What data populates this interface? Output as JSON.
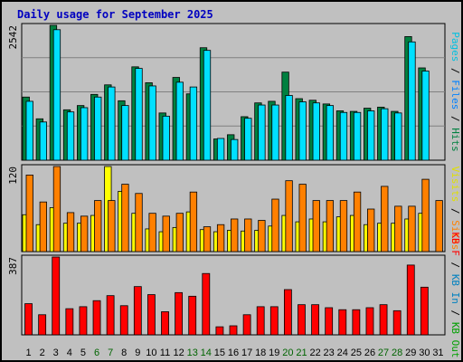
{
  "title": "Daily usage for September 2025",
  "colors": {
    "background": "#c0c0c0",
    "title": "#0000c0",
    "hits": "#008040",
    "files": "#00e0ff",
    "pages": "#00c0e0",
    "visits": "#ffff00",
    "sites": "#ff8000",
    "kb_f": "#ff0000",
    "kb_in": "#0080c0",
    "kb_out": "#00a000",
    "weekend": "#006400",
    "grid": "#808080"
  },
  "chart_data": [
    {
      "type": "bar",
      "panel": "top",
      "ymax_label": "2542",
      "ylim": [
        0,
        2542
      ],
      "axis_label_parts": [
        {
          "text": "Pages",
          "color": "#00c0e0"
        },
        {
          "text": " / ",
          "color": "#000000"
        },
        {
          "text": "Files",
          "color": "#0080ff"
        },
        {
          "text": " / ",
          "color": "#000000"
        },
        {
          "text": "Hits",
          "color": "#008040"
        }
      ],
      "categories": [
        "1",
        "2",
        "3",
        "4",
        "5",
        "6",
        "7",
        "8",
        "9",
        "10",
        "11",
        "12",
        "13",
        "14",
        "15",
        "16",
        "17",
        "18",
        "19",
        "20",
        "21",
        "22",
        "23",
        "24",
        "25",
        "26",
        "27",
        "28",
        "29",
        "30",
        "31"
      ],
      "series": [
        {
          "name": "Hits",
          "color": "#008040",
          "values": [
            1190,
            780,
            2542,
            950,
            1030,
            1240,
            1420,
            1120,
            1760,
            1460,
            890,
            1560,
            1250,
            2120,
            400,
            480,
            820,
            1080,
            1110,
            1660,
            1160,
            1130,
            1060,
            930,
            920,
            980,
            1000,
            920,
            2330,
            1740,
            0
          ]
        },
        {
          "name": "Files",
          "color": "#00e0ff",
          "values": [
            1110,
            720,
            2460,
            910,
            990,
            1190,
            1380,
            1030,
            1730,
            1400,
            830,
            1470,
            1380,
            2070,
            410,
            390,
            790,
            1040,
            1040,
            1220,
            1100,
            1080,
            1030,
            900,
            900,
            930,
            970,
            890,
            2230,
            1680,
            0
          ]
        }
      ]
    },
    {
      "type": "bar",
      "panel": "middle",
      "ymax_label": "120",
      "ylim": [
        0,
        120
      ],
      "axis_label_parts": [
        {
          "text": "Visits",
          "color": "#e0e000"
        },
        {
          "text": " / ",
          "color": "#000000"
        },
        {
          "text": "Sites",
          "color": "#ff8000"
        }
      ],
      "categories": [
        "1",
        "2",
        "3",
        "4",
        "5",
        "6",
        "7",
        "8",
        "9",
        "10",
        "11",
        "12",
        "13",
        "14",
        "15",
        "16",
        "17",
        "18",
        "19",
        "20",
        "21",
        "22",
        "23",
        "24",
        "25",
        "26",
        "27",
        "28",
        "29",
        "30",
        "31"
      ],
      "series": [
        {
          "name": "Visits",
          "color": "#ffff00",
          "values": [
            52,
            38,
            62,
            40,
            40,
            51,
            120,
            85,
            54,
            32,
            28,
            34,
            56,
            31,
            28,
            30,
            29,
            30,
            36,
            51,
            42,
            46,
            42,
            49,
            51,
            38,
            40,
            40,
            46,
            54,
            0
          ]
        },
        {
          "name": "Sites",
          "color": "#ff8000",
          "values": [
            108,
            70,
            120,
            55,
            50,
            72,
            72,
            95,
            82,
            54,
            50,
            54,
            84,
            35,
            38,
            46,
            46,
            44,
            74,
            100,
            95,
            72,
            72,
            72,
            84,
            60,
            92,
            64,
            64,
            102,
            72
          ]
        }
      ]
    },
    {
      "type": "bar",
      "panel": "bottom",
      "ymax_label": "387",
      "ylim": [
        0,
        387
      ],
      "axis_label_parts": [
        {
          "text": "KB F",
          "color": "#ff0000"
        },
        {
          "text": " / ",
          "color": "#000000"
        },
        {
          "text": "KB In",
          "color": "#0080c0"
        },
        {
          "text": " / ",
          "color": "#000000"
        },
        {
          "text": "KB Out",
          "color": "#00a000"
        }
      ],
      "categories": [
        "1",
        "2",
        "3",
        "4",
        "5",
        "6",
        "7",
        "8",
        "9",
        "10",
        "11",
        "12",
        "13",
        "14",
        "15",
        "16",
        "17",
        "18",
        "19",
        "20",
        "21",
        "22",
        "23",
        "24",
        "25",
        "26",
        "27",
        "28",
        "29",
        "30",
        "31"
      ],
      "series": [
        {
          "name": "KB F",
          "color": "#ff0000",
          "values": [
            155,
            100,
            387,
            130,
            140,
            170,
            195,
            145,
            240,
            200,
            115,
            210,
            192,
            305,
            40,
            45,
            100,
            140,
            140,
            225,
            150,
            150,
            135,
            125,
            125,
            135,
            150,
            120,
            347,
            237,
            0
          ]
        }
      ]
    }
  ],
  "x_labels": [
    "1",
    "2",
    "3",
    "4",
    "5",
    "6",
    "7",
    "8",
    "9",
    "10",
    "11",
    "12",
    "13",
    "14",
    "15",
    "16",
    "17",
    "18",
    "19",
    "20",
    "21",
    "22",
    "23",
    "24",
    "25",
    "26",
    "27",
    "28",
    "29",
    "30",
    "31"
  ],
  "weekend_days": [
    6,
    7,
    13,
    14,
    20,
    21,
    27,
    28
  ]
}
